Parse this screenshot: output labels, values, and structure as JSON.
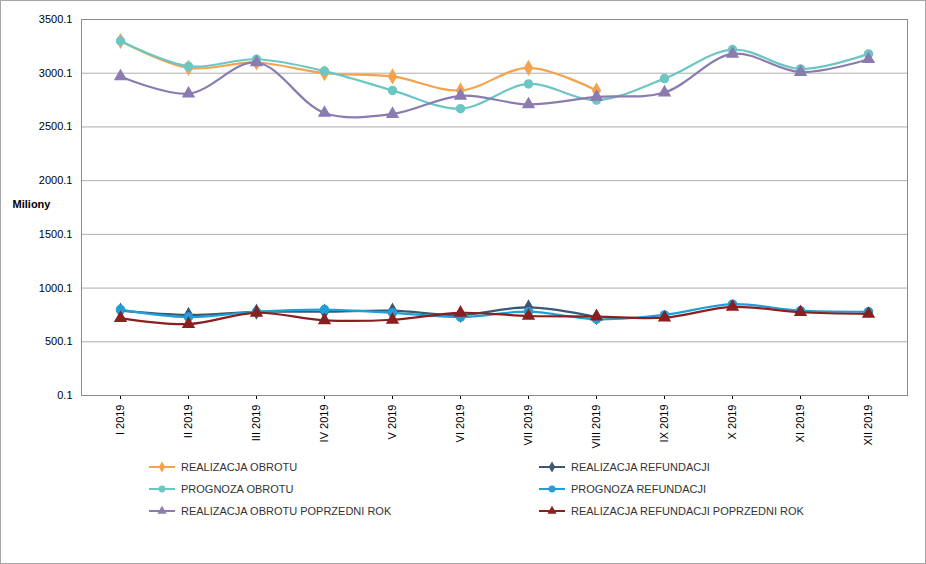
{
  "chart_data": {
    "type": "line",
    "y_label": "Miliony",
    "categories": [
      "I 2019",
      "II 2019",
      "III 2019",
      "IV 2019",
      "V 2019",
      "VI 2019",
      "VII 2019",
      "VIII 2019",
      "IX 2019",
      "X 2019",
      "XI 2019",
      "XII 2019"
    ],
    "series": [
      {
        "name": "REALIZACJA OBROTU",
        "color": "#f4a24c",
        "marker": "diamond",
        "values": [
          3300,
          3050,
          3100,
          3000,
          2970,
          2840,
          3050,
          2840,
          null,
          null,
          null,
          null
        ]
      },
      {
        "name": "REALIZACJA REFUNDACJI",
        "color": "#3b5875",
        "marker": "diamond",
        "values": [
          790,
          750,
          780,
          780,
          790,
          750,
          820,
          730,
          null,
          null,
          null,
          null
        ]
      },
      {
        "name": "PROGNOZA OBROTU",
        "color": "#6cc7c4",
        "marker": "circle",
        "values": [
          3300,
          3065,
          3130,
          3020,
          2840,
          2670,
          2900,
          2750,
          2950,
          3220,
          3040,
          3180
        ]
      },
      {
        "name": "PROGNOZA REFUNDACJI",
        "color": "#1f9fd6",
        "marker": "circle",
        "values": [
          800,
          730,
          780,
          800,
          770,
          730,
          780,
          710,
          750,
          850,
          790,
          780
        ]
      },
      {
        "name": "REALIZACJA OBROTU POPRZEDNI ROK",
        "color": "#8a7bb0",
        "marker": "triangle",
        "values": [
          2970,
          2810,
          3100,
          2630,
          2620,
          2790,
          2710,
          2780,
          2820,
          3180,
          3010,
          3130
        ]
      },
      {
        "name": "REALIZACJA REFUNDACJI POPRZEDNI ROK",
        "color": "#8b1f1f",
        "marker": "triangle",
        "values": [
          720,
          665,
          770,
          700,
          705,
          770,
          740,
          735,
          725,
          825,
          775,
          760
        ]
      }
    ],
    "ylim": [
      0.1,
      3500.1
    ],
    "yticks": [
      0.1,
      500.1,
      1000.1,
      1500.1,
      2000.1,
      2500.1,
      3000.1,
      3500.1
    ],
    "grid": true,
    "legend": "bottom"
  }
}
